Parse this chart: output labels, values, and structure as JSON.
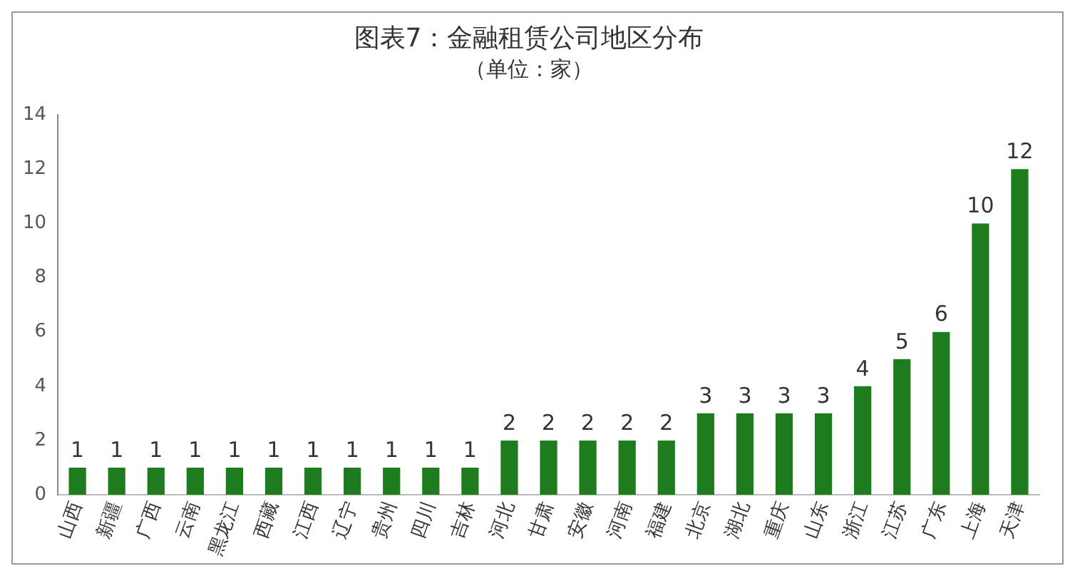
{
  "chart_data": {
    "type": "bar",
    "title": "图表7：金融租赁公司地区分布",
    "subtitle": "（单位：家）",
    "categories": [
      "山西",
      "新疆",
      "广西",
      "云南",
      "黑龙江",
      "西藏",
      "江西",
      "辽宁",
      "贵州",
      "四川",
      "吉林",
      "河北",
      "甘肃",
      "安徽",
      "河南",
      "福建",
      "北京",
      "湖北",
      "重庆",
      "山东",
      "浙江",
      "江苏",
      "广东",
      "上海",
      "天津"
    ],
    "values": [
      1,
      1,
      1,
      1,
      1,
      1,
      1,
      1,
      1,
      1,
      1,
      2,
      2,
      2,
      2,
      2,
      3,
      3,
      3,
      3,
      4,
      5,
      6,
      10,
      12
    ],
    "color": "#1e7b1e",
    "ylim": [
      0,
      14
    ],
    "yticks": [
      0,
      2,
      4,
      6,
      8,
      10,
      12,
      14
    ],
    "grid": false,
    "legend": false,
    "data_labels": true
  }
}
